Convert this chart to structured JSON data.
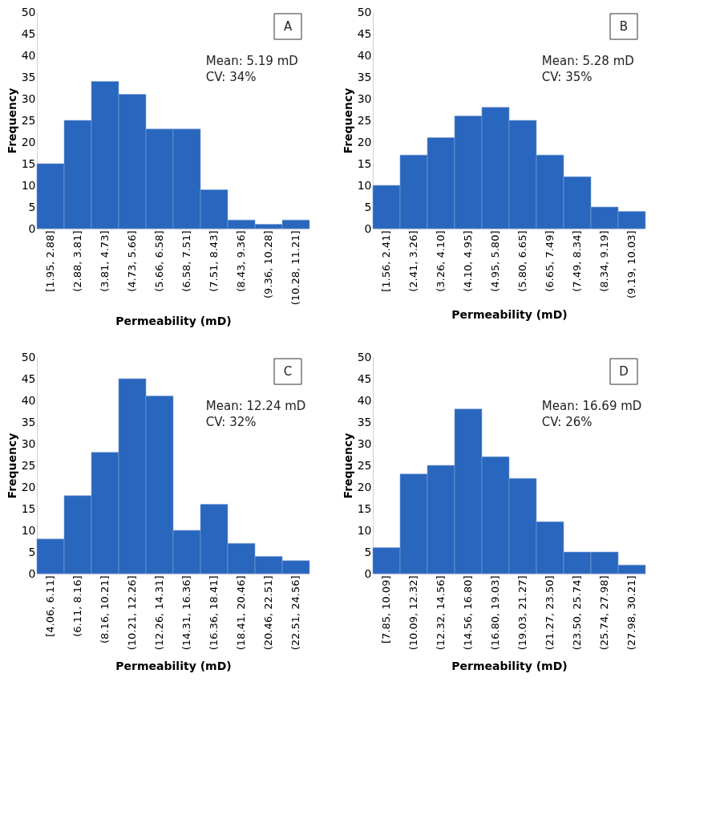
{
  "chart_data": [
    {
      "type": "bar",
      "title": "A",
      "xlabel": "Permeability (mD)",
      "ylabel": "Frequency",
      "categories": [
        "[1.95, 2.88]",
        "(2.88, 3.81]",
        "(3.81, 4.73]",
        "(4.73, 5.66]",
        "(5.66, 6.58]",
        "(6.58, 7.51]",
        "(7.51, 8.43]",
        "(8.43, 9.36]",
        "(9.36, 10.28]",
        "(10.28, 11.21]"
      ],
      "values": [
        15,
        25,
        34,
        31,
        23,
        23,
        9,
        2,
        1,
        2
      ],
      "color": "#2966bd",
      "ylim": [
        0,
        50
      ],
      "yticks": [
        0,
        5,
        10,
        15,
        20,
        25,
        30,
        35,
        40,
        45,
        50
      ],
      "grid": false,
      "annotations": [
        "Mean: 5.19 mD",
        "CV: 34%"
      ]
    },
    {
      "type": "bar",
      "title": "B",
      "xlabel": "Permeability (mD)",
      "ylabel": "Frequency",
      "categories": [
        "[1.56, 2.41]",
        "(2.41, 3.26]",
        "(3.26, 4.10]",
        "(4.10, 4.95]",
        "(4.95, 5.80]",
        "(5.80, 6.65]",
        "(6.65, 7.49]",
        "(7.49, 8.34]",
        "(8.34, 9.19]",
        "(9.19, 10.03]"
      ],
      "values": [
        10,
        17,
        21,
        26,
        28,
        25,
        17,
        12,
        5,
        4
      ],
      "color": "#2966bd",
      "ylim": [
        0,
        50
      ],
      "yticks": [
        0,
        5,
        10,
        15,
        20,
        25,
        30,
        35,
        40,
        45,
        50
      ],
      "grid": false,
      "annotations": [
        "Mean: 5.28 mD",
        "CV: 35%"
      ]
    },
    {
      "type": "bar",
      "title": "C",
      "xlabel": "Permeability (mD)",
      "ylabel": "Frequency",
      "categories": [
        "[4.06, 6.11]",
        "(6.11, 8.16]",
        "(8.16, 10.21]",
        "(10.21, 12.26]",
        "(12.26, 14.31]",
        "(14.31, 16.36]",
        "(16.36, 18.41]",
        "(18.41, 20.46]",
        "(20.46, 22.51]",
        "(22.51, 24.56]"
      ],
      "values": [
        8,
        18,
        28,
        45,
        41,
        10,
        16,
        7,
        4,
        3
      ],
      "color": "#2966bd",
      "ylim": [
        0,
        50
      ],
      "yticks": [
        0,
        5,
        10,
        15,
        20,
        25,
        30,
        35,
        40,
        45,
        50
      ],
      "grid": false,
      "annotations": [
        "Mean: 12.24 mD",
        "CV: 32%"
      ]
    },
    {
      "type": "bar",
      "title": "D",
      "xlabel": "Permeability (mD)",
      "ylabel": "Frequency",
      "categories": [
        "[7.85, 10.09]",
        "(10.09, 12.32]",
        "(12.32, 14.56]",
        "(14.56, 16.80]",
        "(16.80, 19.03]",
        "(19.03, 21.27]",
        "(21.27, 23.50]",
        "(23.50, 25.74]",
        "(25.74, 27.98]",
        "(27.98, 30.21]"
      ],
      "values": [
        6,
        23,
        25,
        38,
        27,
        22,
        12,
        5,
        5,
        2
      ],
      "color": "#2966bd",
      "ylim": [
        0,
        50
      ],
      "yticks": [
        0,
        5,
        10,
        15,
        20,
        25,
        30,
        35,
        40,
        45,
        50
      ],
      "grid": false,
      "annotations": [
        "Mean: 16.69 mD",
        "CV: 26%"
      ]
    }
  ]
}
